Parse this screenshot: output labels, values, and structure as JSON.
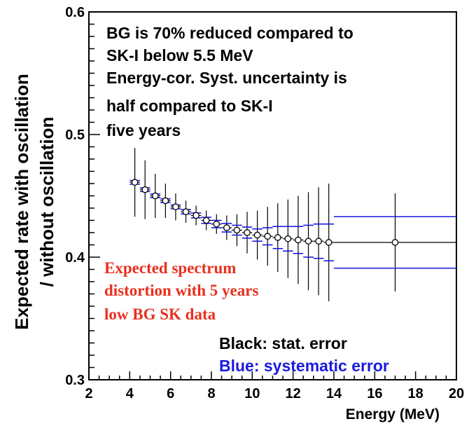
{
  "chart_data": {
    "type": "scatter",
    "xlabel": "Energy (MeV)",
    "ylabel_line1": "Expected rate with oscillation",
    "ylabel_line2": "/ without oscillation",
    "xlim": [
      2,
      20
    ],
    "ylim": [
      0.3,
      0.6
    ],
    "x_ticks": [
      "2",
      "4",
      "6",
      "8",
      "10",
      "12",
      "14",
      "16",
      "18",
      "20"
    ],
    "y_ticks": [
      "0.3",
      "0.4",
      "0.5",
      "0.6"
    ],
    "grid": false,
    "annotations": [
      "BG is 70% reduced compared to",
      "SK-I below 5.5 MeV",
      "Energy-cor. Syst. uncertainty is",
      "half compared to SK-I",
      "five years"
    ],
    "spectrum_note": [
      "Expected spectrum",
      "distortion with 5 years",
      "low BG SK data"
    ],
    "legend": {
      "black": "Black: stat. error",
      "blue": "Blue: systematic error"
    },
    "colors": {
      "stat": "#000000",
      "syst": "#1a1adf",
      "note": "#e8301e"
    },
    "points": [
      {
        "x": 4.25,
        "y": 0.461,
        "stat": 0.028,
        "syst": 0.0015
      },
      {
        "x": 4.75,
        "y": 0.455,
        "stat": 0.024,
        "syst": 0.0015
      },
      {
        "x": 5.25,
        "y": 0.45,
        "stat": 0.018,
        "syst": 0.0015
      },
      {
        "x": 5.75,
        "y": 0.446,
        "stat": 0.014,
        "syst": 0.0015
      },
      {
        "x": 6.25,
        "y": 0.441,
        "stat": 0.011,
        "syst": 0.0015
      },
      {
        "x": 6.75,
        "y": 0.437,
        "stat": 0.009,
        "syst": 0.0018
      },
      {
        "x": 7.25,
        "y": 0.434,
        "stat": 0.008,
        "syst": 0.002
      },
      {
        "x": 7.75,
        "y": 0.43,
        "stat": 0.008,
        "syst": 0.0025
      },
      {
        "x": 8.25,
        "y": 0.427,
        "stat": 0.008,
        "syst": 0.003
      },
      {
        "x": 8.75,
        "y": 0.424,
        "stat": 0.01,
        "syst": 0.0035
      },
      {
        "x": 9.25,
        "y": 0.422,
        "stat": 0.013,
        "syst": 0.004
      },
      {
        "x": 9.75,
        "y": 0.42,
        "stat": 0.017,
        "syst": 0.0045
      },
      {
        "x": 10.25,
        "y": 0.418,
        "stat": 0.02,
        "syst": 0.005
      },
      {
        "x": 10.75,
        "y": 0.417,
        "stat": 0.024,
        "syst": 0.007
      },
      {
        "x": 11.25,
        "y": 0.416,
        "stat": 0.028,
        "syst": 0.009
      },
      {
        "x": 11.75,
        "y": 0.415,
        "stat": 0.032,
        "syst": 0.01
      },
      {
        "x": 12.25,
        "y": 0.414,
        "stat": 0.036,
        "syst": 0.011
      },
      {
        "x": 12.75,
        "y": 0.413,
        "stat": 0.04,
        "syst": 0.013
      },
      {
        "x": 13.25,
        "y": 0.413,
        "stat": 0.044,
        "syst": 0.014
      },
      {
        "x": 13.75,
        "y": 0.412,
        "stat": 0.048,
        "syst": 0.015
      },
      {
        "x": 17.0,
        "y": 0.412,
        "stat": 0.04,
        "syst": 0.021,
        "xlow": 14,
        "xhigh": 20
      }
    ]
  }
}
